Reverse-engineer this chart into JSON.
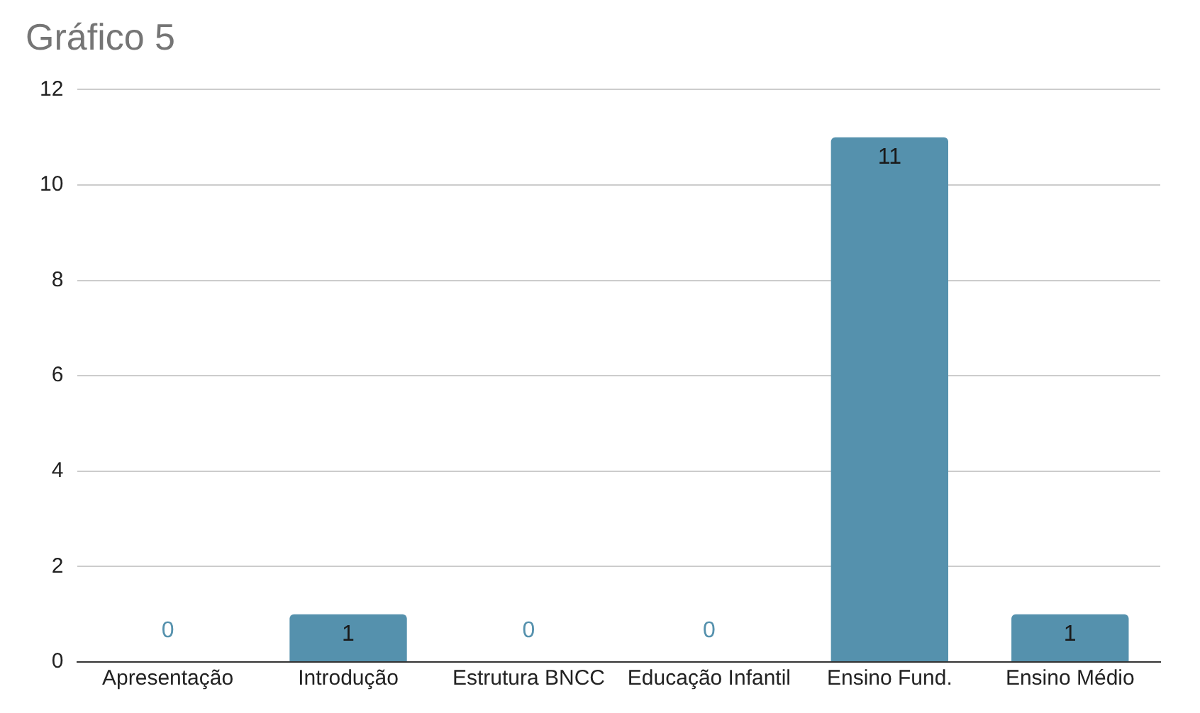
{
  "chart_data": {
    "type": "bar",
    "title": "Gráfico 5",
    "categories": [
      "Apresentação",
      "Introdução",
      "Estrutura BNCC",
      "Educação Infantil",
      "Ensino Fund.",
      "Ensino Médio"
    ],
    "values": [
      0,
      1,
      0,
      0,
      11,
      1
    ],
    "color": "#5591ad",
    "ylim": [
      0,
      12
    ],
    "yticks": [
      0,
      2,
      4,
      6,
      8,
      10,
      12
    ],
    "grid": "y",
    "data_labels": true
  }
}
